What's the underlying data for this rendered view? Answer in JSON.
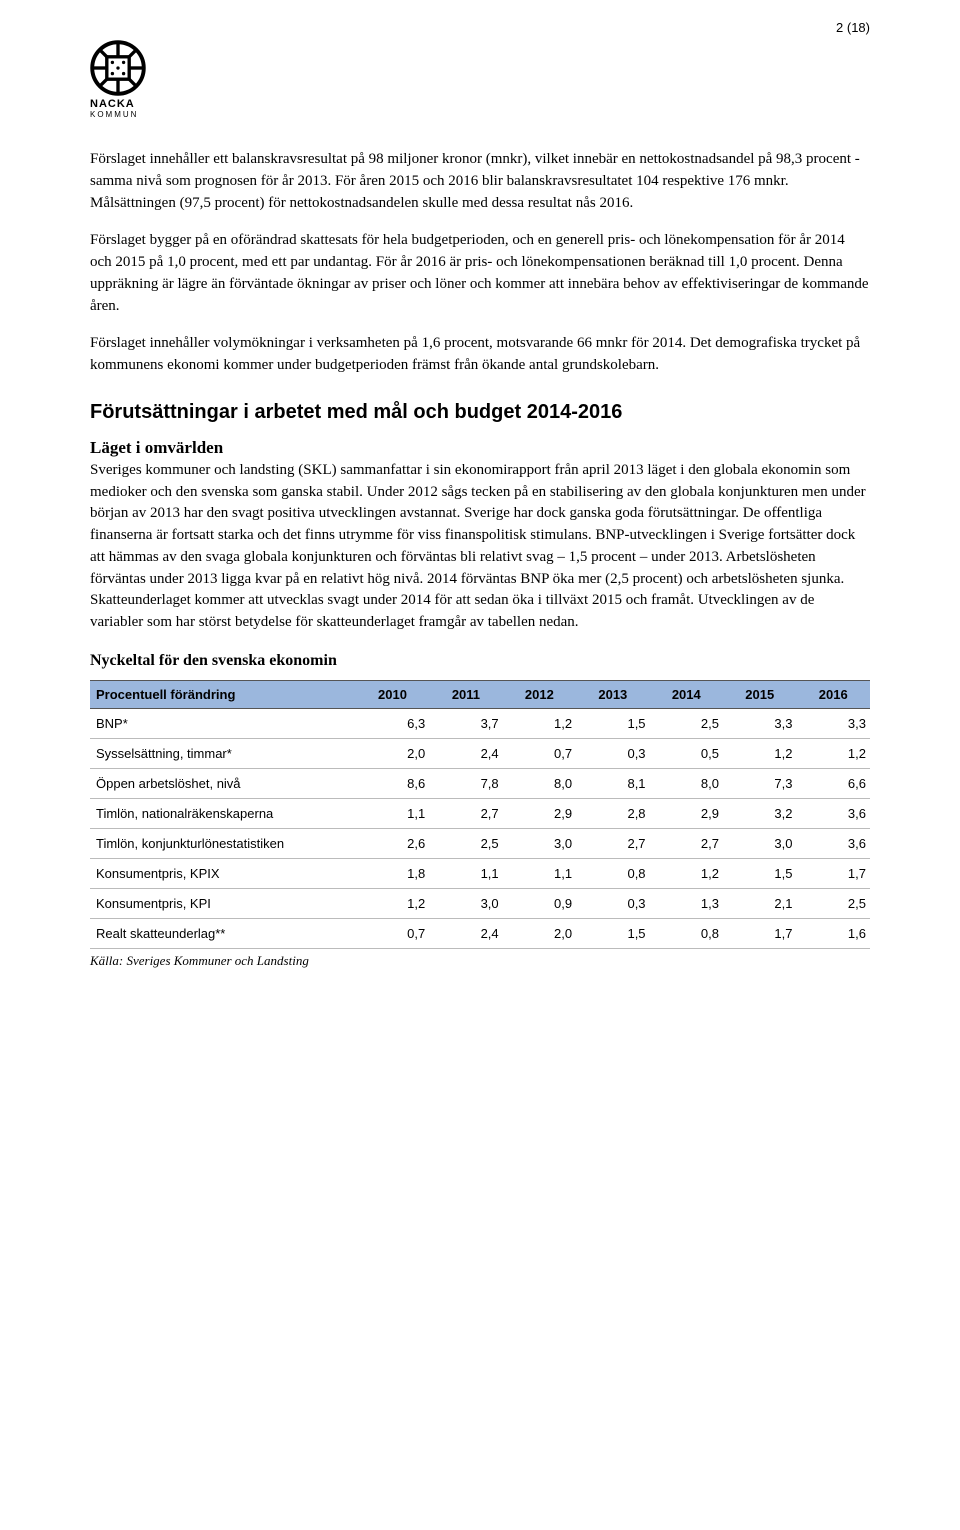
{
  "page_number": "2 (18)",
  "logo": {
    "name": "NACKA",
    "sub": "KOMMUN"
  },
  "paragraphs": {
    "p1": "Förslaget innehåller ett balanskravsresultat på 98 miljoner kronor (mnkr), vilket innebär en nettokostnadsandel på 98,3 procent - samma nivå som prognosen för år 2013. För åren 2015 och 2016 blir balanskravsresultatet 104 respektive 176 mnkr. Målsättningen (97,5 procent) för nettokostnadsandelen skulle med dessa resultat nås 2016.",
    "p2": "Förslaget bygger på en oförändrad skattesats för hela budgetperioden, och en generell pris- och lönekompensation för år 2014 och 2015 på 1,0 procent, med ett par undantag. För år 2016 är pris- och lönekompensationen beräknad till 1,0 procent. Denna uppräkning är lägre än förväntade ökningar av priser och löner och kommer att innebära behov av effektiviseringar de kommande åren.",
    "p3": "Förslaget innehåller volymökningar i verksamheten på 1,6 procent, motsvarande 66 mnkr för 2014. Det demografiska trycket på kommunens ekonomi kommer under budgetperioden främst från ökande antal grundskolebarn.",
    "p4": "Sveriges kommuner och landsting (SKL) sammanfattar i sin ekonomirapport från april 2013 läget i den globala ekonomin som medioker och den svenska som ganska stabil. Under 2012 sågs tecken på en stabilisering av den globala konjunkturen men under början av 2013 har den svagt positiva utvecklingen avstannat. Sverige har dock ganska goda förutsättningar. De offentliga finanserna är fortsatt starka och det finns utrymme för viss finanspolitisk stimulans. BNP-utvecklingen i Sverige fortsätter dock att hämmas av den svaga globala konjunkturen och förväntas bli relativt svag – 1,5 procent – under 2013. Arbetslösheten förväntas under 2013 ligga kvar på en relativt hög nivå. 2014 förväntas BNP öka mer (2,5 procent) och arbetslösheten sjunka. Skatteunderlaget kommer att utvecklas svagt under 2014 för att sedan öka i tillväxt 2015 och framåt. Utvecklingen av de variabler som har störst betydelse för skatteunderlaget framgår av tabellen nedan."
  },
  "headings": {
    "h2_1": "Förutsättningar i arbetet med mål och budget 2014-2016",
    "h3_1": "Läget i omvärlden",
    "table_title": "Nyckeltal för den svenska ekonomin"
  },
  "table": {
    "header_bg": "#9bb7dd",
    "columns": [
      "Procentuell förändring",
      "2010",
      "2011",
      "2012",
      "2013",
      "2014",
      "2015",
      "2016"
    ],
    "col_widths": [
      "34%",
      "9.4%",
      "9.4%",
      "9.4%",
      "9.4%",
      "9.4%",
      "9.4%",
      "9.4%"
    ],
    "rows": [
      [
        "BNP*",
        "6,3",
        "3,7",
        "1,2",
        "1,5",
        "2,5",
        "3,3",
        "3,3"
      ],
      [
        "Sysselsättning, timmar*",
        "2,0",
        "2,4",
        "0,7",
        "0,3",
        "0,5",
        "1,2",
        "1,2"
      ],
      [
        "Öppen arbetslöshet, nivå",
        "8,6",
        "7,8",
        "8,0",
        "8,1",
        "8,0",
        "7,3",
        "6,6"
      ],
      [
        "Timlön, nationalräkenskaperna",
        "1,1",
        "2,7",
        "2,9",
        "2,8",
        "2,9",
        "3,2",
        "3,6"
      ],
      [
        "Timlön, konjunkturlönestatistiken",
        "2,6",
        "2,5",
        "3,0",
        "2,7",
        "2,7",
        "3,0",
        "3,6"
      ],
      [
        "Konsumentpris, KPIX",
        "1,8",
        "1,1",
        "1,1",
        "0,8",
        "1,2",
        "1,5",
        "1,7"
      ],
      [
        "Konsumentpris, KPI",
        "1,2",
        "3,0",
        "0,9",
        "0,3",
        "1,3",
        "2,1",
        "2,5"
      ],
      [
        "Realt skatteunderlag**",
        "0,7",
        "2,4",
        "2,0",
        "1,5",
        "0,8",
        "1,7",
        "1,6"
      ]
    ]
  },
  "source": "Källa: Sveriges Kommuner och Landsting"
}
